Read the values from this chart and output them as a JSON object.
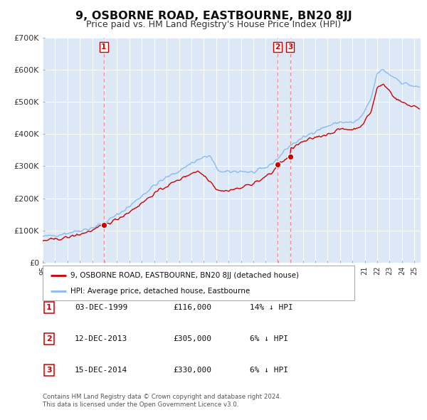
{
  "title": "9, OSBORNE ROAD, EASTBOURNE, BN20 8JJ",
  "subtitle": "Price paid vs. HM Land Registry's House Price Index (HPI)",
  "title_fontsize": 11.5,
  "subtitle_fontsize": 9,
  "bg_color": "#ffffff",
  "plot_bg_color": "#dce8f5",
  "grid_color": "#ffffff",
  "ylim": [
    0,
    700000
  ],
  "yticks": [
    0,
    100000,
    200000,
    300000,
    400000,
    500000,
    600000,
    700000
  ],
  "ytick_labels": [
    "£0",
    "£100K",
    "£200K",
    "£300K",
    "£400K",
    "£500K",
    "£600K",
    "£700K"
  ],
  "xlim_start": 1995.0,
  "xlim_end": 2025.5,
  "sale_color": "#cc0000",
  "hpi_color": "#88bbee",
  "sale_marker_color": "#cc0000",
  "sale_marker_size": 6,
  "dashed_line_color": "#ee8888",
  "transactions": [
    {
      "num": 1,
      "date_x": 1999.92,
      "price": 116000,
      "label": "1"
    },
    {
      "num": 2,
      "date_x": 2013.95,
      "price": 305000,
      "label": "2"
    },
    {
      "num": 3,
      "date_x": 2014.96,
      "price": 330000,
      "label": "3"
    }
  ],
  "legend_entries": [
    {
      "label": "9, OSBORNE ROAD, EASTBOURNE, BN20 8JJ (detached house)",
      "color": "#cc0000"
    },
    {
      "label": "HPI: Average price, detached house, Eastbourne",
      "color": "#88bbee"
    }
  ],
  "table_rows": [
    {
      "num": "1",
      "date": "03-DEC-1999",
      "price": "£116,000",
      "hpi": "14% ↓ HPI"
    },
    {
      "num": "2",
      "date": "12-DEC-2013",
      "price": "£305,000",
      "hpi": "6% ↓ HPI"
    },
    {
      "num": "3",
      "date": "15-DEC-2014",
      "price": "£330,000",
      "hpi": "6% ↓ HPI"
    }
  ],
  "footer": "Contains HM Land Registry data © Crown copyright and database right 2024.\nThis data is licensed under the Open Government Licence v3.0."
}
